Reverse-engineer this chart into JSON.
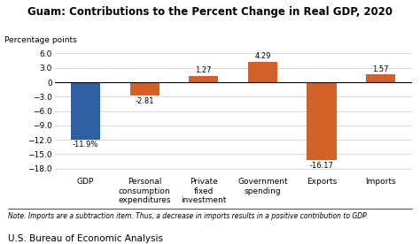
{
  "title": "Guam: Contributions to the Percent Change in Real GDP, 2020",
  "ylabel": "Percentage points",
  "categories": [
    "GDP",
    "Personal\nconsumption\nexpenditures",
    "Private\nfixed\ninvestment",
    "Government\nspending",
    "Exports",
    "Imports"
  ],
  "values": [
    -11.9,
    -2.81,
    1.27,
    4.29,
    -16.17,
    1.57
  ],
  "bar_colors": [
    "#2e5fa3",
    "#d2622a",
    "#d2622a",
    "#d2622a",
    "#d2622a",
    "#d2622a"
  ],
  "bar_labels": [
    "-11.9%",
    "-2.81",
    "1.27",
    "4.29",
    "-16.17",
    "1.57"
  ],
  "ylim": [
    -19.5,
    8.5
  ],
  "yticks": [
    6.0,
    3.0,
    0.0,
    -3.0,
    -6.0,
    -9.0,
    -12.0,
    -15.0,
    -18.0
  ],
  "note": "Note. Imports are a subtraction item. Thus, a decrease in imports results in a positive contribution to GDP.",
  "footer": "U.S. Bureau of Economic Analysis",
  "title_fontsize": 8.5,
  "axis_fontsize": 6.5,
  "label_fontsize": 6.0,
  "note_fontsize": 5.5,
  "footer_fontsize": 7.5,
  "background_color": "#ffffff"
}
